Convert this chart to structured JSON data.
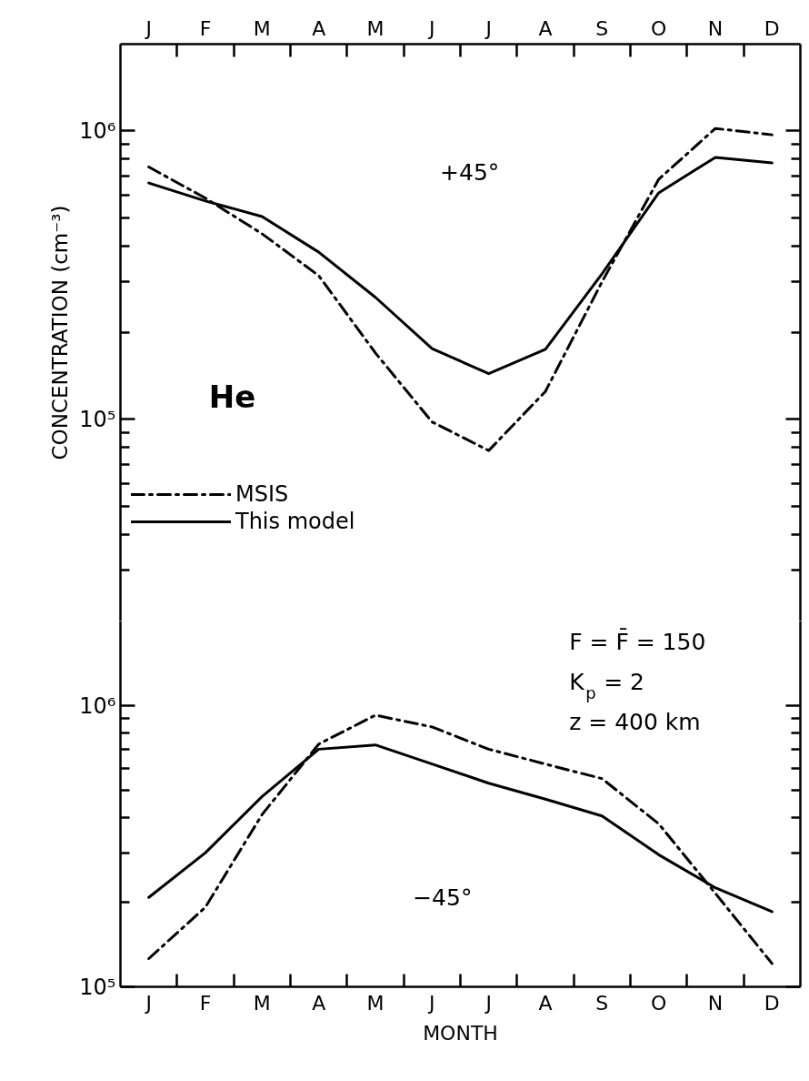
{
  "chart_data": [
    {
      "type": "line",
      "ylabel": "CONCENTRATION (cm⁻³)",
      "log": true,
      "legend": "bottom left",
      "grid": false,
      "annotations": [
        "+45°",
        "He"
      ],
      "categories": [
        "J",
        "F",
        "M",
        "A",
        "M",
        "J",
        "J",
        "A",
        "S",
        "O",
        "N",
        "D"
      ],
      "ylim": [
        20000,
        2000000
      ],
      "yticks": [
        {
          "value": 30000,
          "label": null
        },
        {
          "value": 40000,
          "label": null
        },
        {
          "value": 50000,
          "label": null
        },
        {
          "value": 60000,
          "label": null
        },
        {
          "value": 70000,
          "label": null
        },
        {
          "value": 80000,
          "label": null
        },
        {
          "value": 90000,
          "label": null
        },
        {
          "value": 100000,
          "label": "10⁵"
        },
        {
          "value": 200000,
          "label": null
        },
        {
          "value": 300000,
          "label": null
        },
        {
          "value": 400000,
          "label": null
        },
        {
          "value": 500000,
          "label": null
        },
        {
          "value": 600000,
          "label": null
        },
        {
          "value": 700000,
          "label": null
        },
        {
          "value": 800000,
          "label": null
        },
        {
          "value": 900000,
          "label": null
        },
        {
          "value": 1000000,
          "label": "10⁶"
        }
      ],
      "series": [
        {
          "name": "MSIS",
          "color": "#000000",
          "line_style": "dashdot",
          "values": [
            750000,
            585000,
            440000,
            315000,
            170000,
            98000,
            78000,
            125000,
            300000,
            680000,
            1020000,
            970000
          ]
        },
        {
          "name": "This model",
          "color": "#000000",
          "line_style": "solid",
          "values": [
            660000,
            572000,
            505000,
            380000,
            265000,
            176000,
            144000,
            175000,
            320000,
            610000,
            810000,
            775000
          ]
        }
      ]
    },
    {
      "type": "line",
      "xlabel": "MONTH",
      "log": true,
      "grid": false,
      "annotations": [
        "F = F̄ = 150",
        "K$_{p}$ = 2",
        "z = 400 km",
        "−45°"
      ],
      "categories": [
        "J",
        "F",
        "M",
        "A",
        "M",
        "J",
        "J",
        "A",
        "S",
        "O",
        "N",
        "D"
      ],
      "ylim": [
        100000,
        2000000
      ],
      "yticks": [
        {
          "value": 100000,
          "label": "10⁵"
        },
        {
          "value": 200000,
          "label": null
        },
        {
          "value": 300000,
          "label": null
        },
        {
          "value": 400000,
          "label": null
        },
        {
          "value": 500000,
          "label": null
        },
        {
          "value": 600000,
          "label": null
        },
        {
          "value": 700000,
          "label": null
        },
        {
          "value": 800000,
          "label": null
        },
        {
          "value": 900000,
          "label": null
        },
        {
          "value": 1000000,
          "label": "10⁶"
        }
      ],
      "series": [
        {
          "color": "#000000",
          "line_style": "dashdot",
          "values": [
            126000,
            192000,
            410000,
            730000,
            925000,
            840000,
            700000,
            620000,
            550000,
            380000,
            215000,
            121000
          ]
        },
        {
          "color": "#000000",
          "line_style": "solid",
          "values": [
            208000,
            300000,
            475000,
            700000,
            725000,
            620000,
            530000,
            465000,
            405000,
            295000,
            225000,
            185000
          ]
        }
      ]
    }
  ]
}
